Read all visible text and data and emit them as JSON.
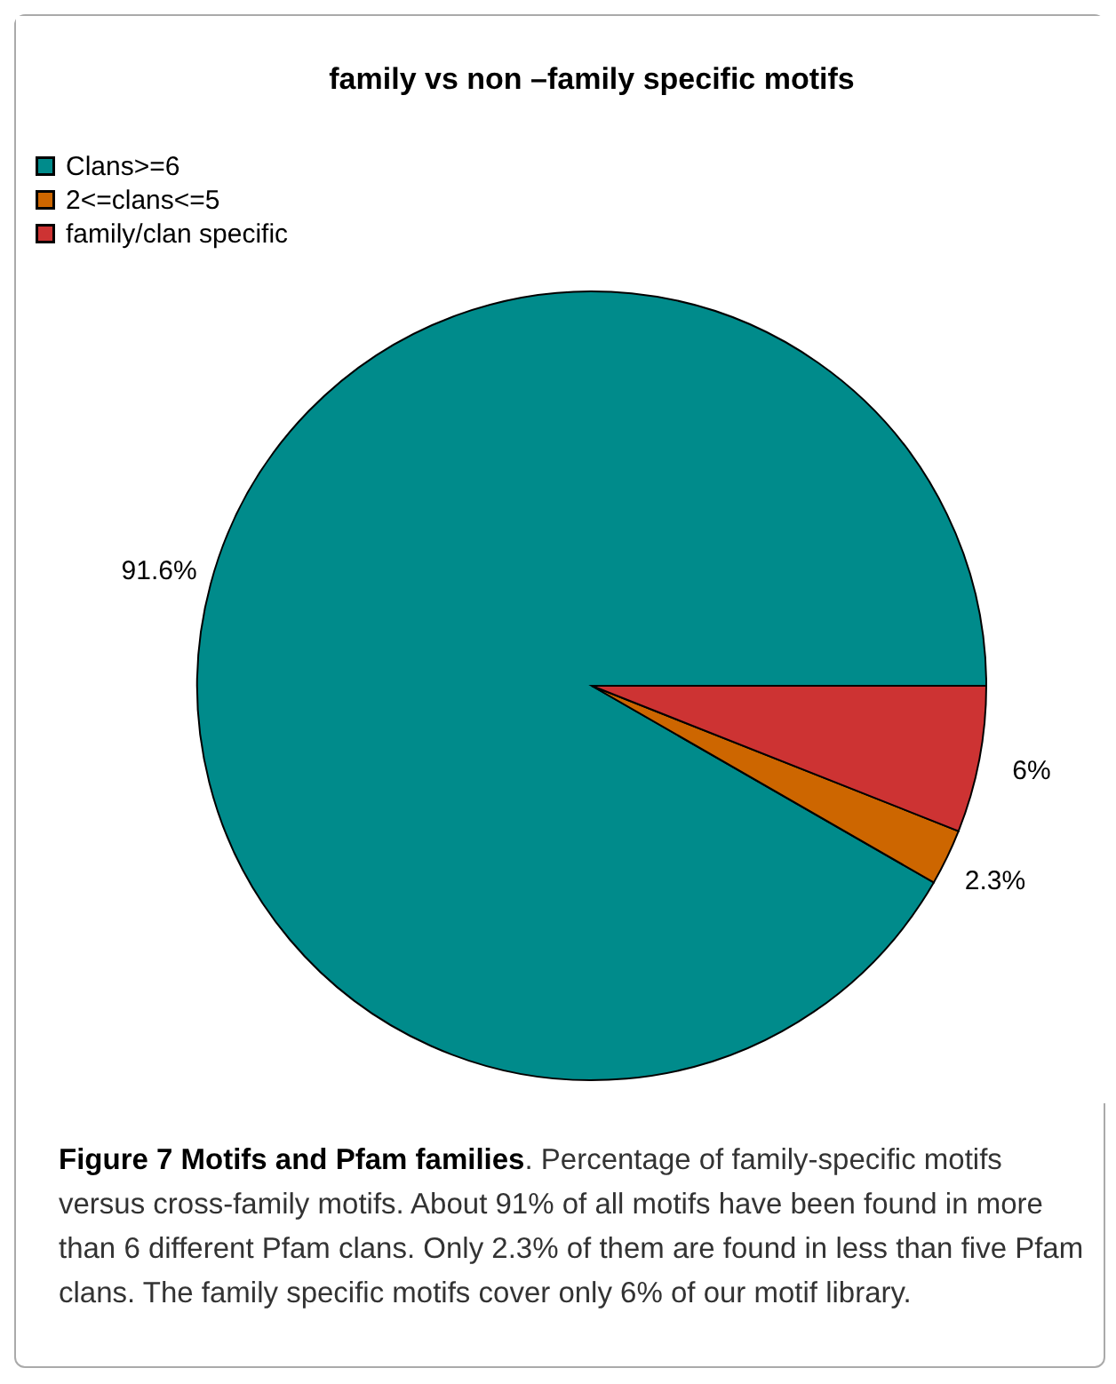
{
  "chart_data": {
    "type": "pie",
    "title": "family vs non –family specific motifs",
    "categories": [
      "Clans>=6",
      "2<=clans<=5",
      "family/clan specific"
    ],
    "values": [
      91.6,
      2.3,
      6
    ],
    "colors": [
      "#008b8b",
      "#cd6600",
      "#cd3333"
    ],
    "value_labels": [
      "91.6%",
      "2.3%",
      "6%"
    ],
    "legend": "top left",
    "annotations": [
      "Figure 7 Motifs and Pfam families",
      ". Percentage of family-specific motifs versus cross-family motifs. About 91% of all motifs have been found in more than 6 different Pfam clans. Only 2.3% of them are found in less than five Pfam clans. The family specific motifs cover only 6% of our motif library."
    ]
  }
}
